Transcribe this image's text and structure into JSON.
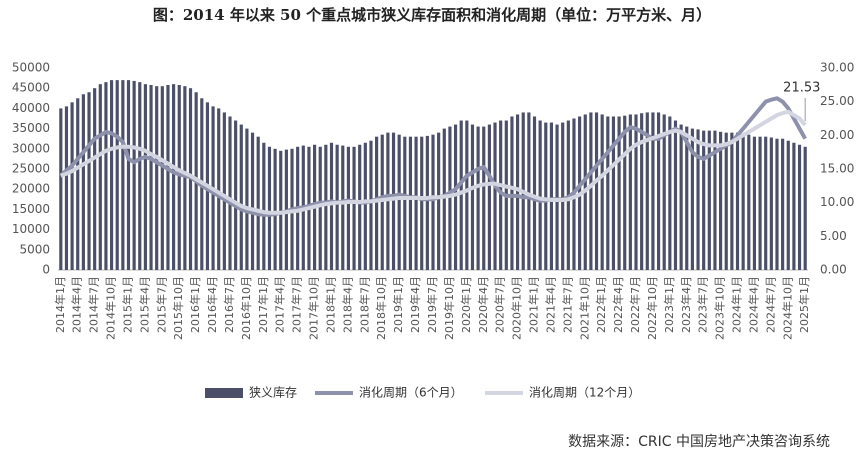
{
  "chart_data": {
    "type": "bar-line",
    "title": "图：2014 年以来 50 个重点城市狭义库存面积和消化周期（单位：万平方米、月）",
    "source": "数据来源：CRIC 中国房地产决策咨询系统",
    "annotation": "21.53",
    "categories": [
      "2014年1月",
      null,
      null,
      "2014年4月",
      null,
      null,
      "2014年7月",
      null,
      null,
      "2014年10月",
      null,
      null,
      "2015年1月",
      null,
      null,
      "2015年4月",
      null,
      null,
      "2015年7月",
      null,
      null,
      "2015年10月",
      null,
      null,
      "2016年1月",
      null,
      null,
      "2016年4月",
      null,
      null,
      "2016年7月",
      null,
      null,
      "2016年10月",
      null,
      null,
      "2017年1月",
      null,
      null,
      "2017年4月",
      null,
      null,
      "2017年7月",
      null,
      null,
      "2017年10月",
      null,
      null,
      "2018年1月",
      null,
      null,
      "2018年4月",
      null,
      null,
      "2018年7月",
      null,
      null,
      "2018年10月",
      null,
      null,
      "2019年1月",
      null,
      null,
      "2019年4月",
      null,
      null,
      "2019年7月",
      null,
      null,
      "2019年10月",
      null,
      null,
      "2020年1月",
      null,
      null,
      "2020年4月",
      null,
      null,
      "2020年7月",
      null,
      null,
      "2020年10月",
      null,
      null,
      "2021年1月",
      null,
      null,
      "2021年4月",
      null,
      null,
      "2021年7月",
      null,
      null,
      "2021年10月",
      null,
      null,
      "2022年1月",
      null,
      null,
      "2022年4月",
      null,
      null,
      "2022年7月",
      null,
      null,
      "2022年10月",
      null,
      null,
      "2023年1月",
      null,
      null,
      "2023年4月",
      null,
      null,
      "2023年7月",
      null,
      null,
      "2023年10月",
      null,
      null,
      "2024年1月",
      null,
      null,
      "2024年4月",
      null,
      null,
      "2024年7月",
      null,
      null,
      "2024年10月",
      null,
      null,
      "2025年1月"
    ],
    "series": [
      {
        "name": "狭义库存",
        "type": "bar",
        "color": "#4b5068",
        "values": [
          40000,
          40500,
          41500,
          42500,
          43500,
          44000,
          45000,
          46000,
          46500,
          47000,
          47000,
          47000,
          47000,
          46800,
          46500,
          46000,
          45800,
          45500,
          45500,
          45800,
          46000,
          45800,
          45500,
          45000,
          44000,
          42500,
          41500,
          40500,
          40000,
          39000,
          38000,
          37000,
          36000,
          35000,
          34000,
          33000,
          31500,
          30500,
          30000,
          29500,
          29800,
          30000,
          30500,
          30800,
          30500,
          31000,
          30500,
          31000,
          31500,
          31000,
          30800,
          30500,
          30500,
          31000,
          31500,
          32000,
          33000,
          33500,
          34000,
          34000,
          33500,
          33000,
          33000,
          33000,
          33000,
          33200,
          33500,
          34000,
          35000,
          35500,
          36000,
          37000,
          37000,
          36000,
          35500,
          35500,
          36000,
          36500,
          37000,
          37000,
          38000,
          38500,
          39000,
          39000,
          38000,
          37000,
          36500,
          36500,
          36000,
          36500,
          37000,
          37500,
          38000,
          38500,
          39000,
          39000,
          38500,
          38000,
          38000,
          38000,
          38200,
          38500,
          38500,
          38800,
          39000,
          39000,
          39000,
          38500,
          38000,
          37000,
          36000,
          35500,
          35000,
          34800,
          34500,
          34500,
          34500,
          34200,
          34000,
          34000,
          34000,
          33500,
          33500,
          33000,
          33000,
          33000,
          32800,
          32500,
          32500,
          32000,
          31500,
          31000,
          30500
        ]
      },
      {
        "name": "消化周期（6个月）",
        "type": "line",
        "axis": "y2",
        "color": "#8e91ab",
        "values": [
          14,
          14.8,
          15.5,
          16.5,
          17.5,
          18.5,
          19.5,
          20,
          20.5,
          20.3,
          19.8,
          19,
          16.5,
          16,
          16.5,
          16.8,
          16.5,
          16,
          15.5,
          15,
          14.5,
          14.2,
          14,
          13.8,
          13.2,
          12.5,
          12,
          11.5,
          11,
          10.5,
          10,
          9.5,
          9,
          8.7,
          8.5,
          8.3,
          8.2,
          8.2,
          8.3,
          8.5,
          8.7,
          9,
          9.2,
          9.3,
          9.5,
          9.8,
          10,
          10,
          10.2,
          10,
          10.2,
          10.3,
          10.2,
          10,
          10,
          10.2,
          10.5,
          10.8,
          11,
          11,
          11.2,
          11,
          10.8,
          10.8,
          10.5,
          10.5,
          10.5,
          10.8,
          11,
          11.5,
          12,
          13,
          14,
          14.5,
          15,
          15.3,
          14,
          12.5,
          11.5,
          11,
          11,
          11,
          10.8,
          10.8,
          10.5,
          10.3,
          10.3,
          10.5,
          10.5,
          10.5,
          10.8,
          11.5,
          12.5,
          13.5,
          14.5,
          15.5,
          16.5,
          17.5,
          18.5,
          19.5,
          20.5,
          21.2,
          21,
          20.5,
          20,
          19.5,
          19.5,
          20,
          20.5,
          21,
          20.5,
          19,
          17.5,
          16.8,
          16.5,
          17,
          17.5,
          18,
          18.5,
          19,
          20,
          21,
          22,
          23,
          24,
          25,
          25.3,
          25.5,
          25,
          24,
          22.5,
          21,
          19.5
        ]
      },
      {
        "name": "消化周期（12个月）",
        "type": "line",
        "axis": "y2",
        "color": "#d3d5e1",
        "values": [
          14,
          14.3,
          14.7,
          15.2,
          15.7,
          16.2,
          16.7,
          17.2,
          17.7,
          18,
          18.2,
          18.3,
          18.3,
          18.2,
          18,
          17.7,
          17.2,
          16.8,
          16.3,
          15.8,
          15.3,
          14.8,
          14.4,
          14,
          13.5,
          13,
          12.5,
          12,
          11.5,
          11,
          10.5,
          10,
          9.5,
          9.2,
          9,
          8.8,
          8.6,
          8.5,
          8.5,
          8.5,
          8.6,
          8.7,
          8.8,
          9,
          9.2,
          9.4,
          9.6,
          9.8,
          9.9,
          10,
          10,
          10.1,
          10.1,
          10.1,
          10.2,
          10.2,
          10.3,
          10.4,
          10.5,
          10.6,
          10.7,
          10.7,
          10.7,
          10.7,
          10.7,
          10.7,
          10.8,
          10.8,
          10.9,
          11,
          11.2,
          11.5,
          11.8,
          12.2,
          12.5,
          12.7,
          12.8,
          12.8,
          12.6,
          12.4,
          12.2,
          12,
          11.6,
          11.2,
          10.9,
          10.6,
          10.5,
          10.4,
          10.4,
          10.4,
          10.5,
          10.8,
          11.2,
          11.8,
          12.5,
          13.3,
          14,
          14.8,
          15.6,
          16.4,
          17.2,
          18,
          18.6,
          19,
          19.3,
          19.6,
          19.9,
          20.2,
          20.5,
          20.7,
          20.5,
          20,
          19.5,
          19,
          18.7,
          18.5,
          18.5,
          18.5,
          18.7,
          19,
          19.5,
          20,
          20.5,
          21,
          21.5,
          22,
          22.5,
          23,
          23.3,
          23.5,
          23,
          22.5,
          21.53
        ]
      }
    ],
    "ylim": [
      0,
      50000
    ],
    "yticks": [
      0,
      5000,
      10000,
      15000,
      20000,
      25000,
      30000,
      35000,
      40000,
      45000,
      50000
    ],
    "y2lim": [
      0,
      30
    ],
    "y2ticks": [
      {
        "value": 0,
        "label": "0.00"
      },
      {
        "value": 5,
        "label": "5.00"
      },
      {
        "value": 10,
        "label": "10.00"
      },
      {
        "value": 15,
        "label": "15.00"
      },
      {
        "value": 20,
        "label": "20.00"
      },
      {
        "value": 25,
        "label": "25.00"
      },
      {
        "value": 30,
        "label": "30.00"
      }
    ],
    "grid": false
  }
}
